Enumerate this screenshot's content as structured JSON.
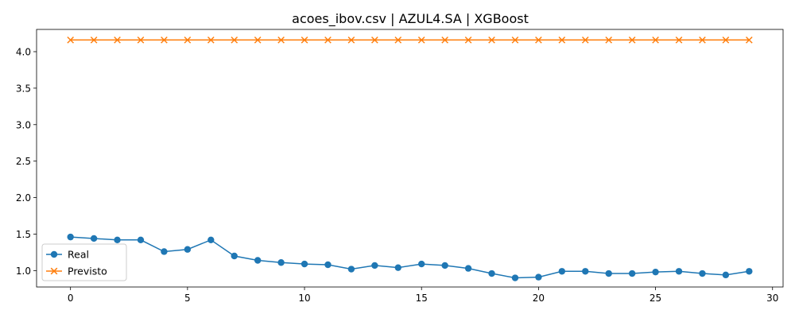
{
  "chart_data": {
    "type": "line",
    "title": "acoes_ibov.csv | AZUL4.SA | XGBoost",
    "xlabel": "",
    "ylabel": "",
    "xlim": [
      -1.45,
      30.45
    ],
    "ylim": [
      0.775,
      4.305
    ],
    "xticks": [
      0,
      5,
      10,
      15,
      20,
      25,
      30
    ],
    "yticks": [
      1.0,
      1.5,
      2.0,
      2.5,
      3.0,
      3.5,
      4.0
    ],
    "ytick_labels": [
      "1.0",
      "1.5",
      "2.0",
      "2.5",
      "3.0",
      "3.5",
      "4.0"
    ],
    "grid": false,
    "legend_position": "lower-left",
    "x": [
      0,
      1,
      2,
      3,
      4,
      5,
      6,
      7,
      8,
      9,
      10,
      11,
      12,
      13,
      14,
      15,
      16,
      17,
      18,
      19,
      20,
      21,
      22,
      23,
      24,
      25,
      26,
      27,
      28,
      29
    ],
    "series": [
      {
        "name": "Real",
        "color": "#1f77b4",
        "marker": "circle",
        "values": [
          1.46,
          1.44,
          1.42,
          1.42,
          1.26,
          1.29,
          1.42,
          1.2,
          1.14,
          1.11,
          1.09,
          1.08,
          1.02,
          1.07,
          1.04,
          1.09,
          1.07,
          1.03,
          0.96,
          0.9,
          0.91,
          0.99,
          0.99,
          0.96,
          0.96,
          0.98,
          0.99,
          0.96,
          0.94,
          0.99
        ]
      },
      {
        "name": "Previsto",
        "color": "#ff7f0e",
        "marker": "x",
        "values": [
          4.16,
          4.16,
          4.16,
          4.16,
          4.16,
          4.16,
          4.16,
          4.16,
          4.16,
          4.16,
          4.16,
          4.16,
          4.16,
          4.16,
          4.16,
          4.16,
          4.16,
          4.16,
          4.16,
          4.16,
          4.16,
          4.16,
          4.16,
          4.16,
          4.16,
          4.16,
          4.16,
          4.16,
          4.16,
          4.16
        ]
      }
    ]
  }
}
